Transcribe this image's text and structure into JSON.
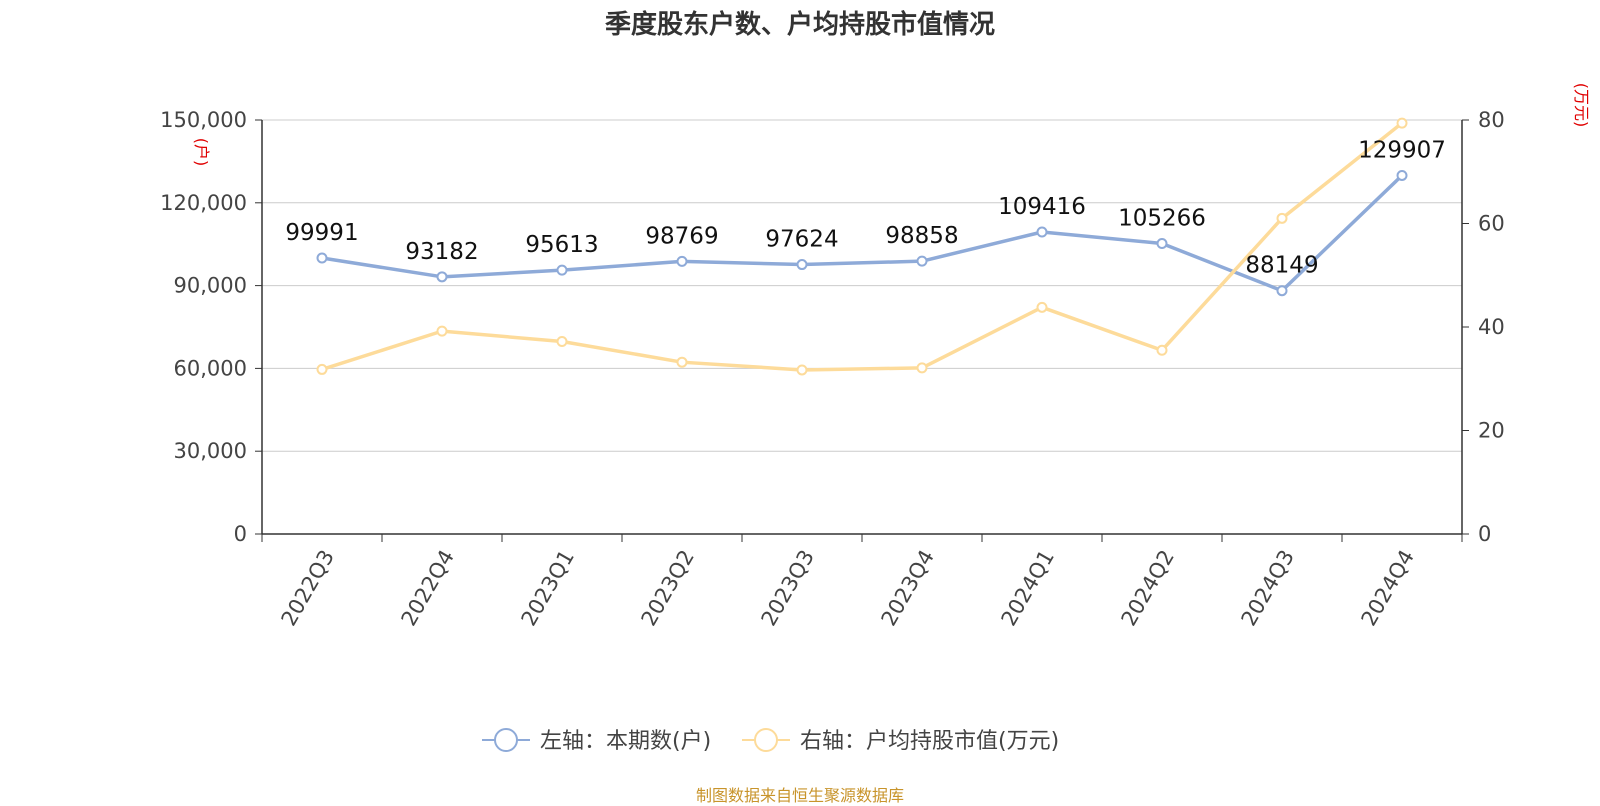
{
  "title": "季度股东户数、户均持股市值情况",
  "source": "制图数据来自恒生聚源数据库",
  "chart_data": {
    "type": "line",
    "categories": [
      "2022Q3",
      "2022Q4",
      "2023Q1",
      "2023Q2",
      "2023Q3",
      "2023Q4",
      "2024Q1",
      "2024Q2",
      "2024Q3",
      "2024Q4"
    ],
    "left_axis": {
      "unit": "(户)",
      "ylim": [
        0,
        150000
      ],
      "ticks": [
        "0",
        "30,000",
        "60,000",
        "90,000",
        "120,000",
        "150,000"
      ],
      "tick_values": [
        0,
        30000,
        60000,
        90000,
        120000,
        150000
      ]
    },
    "right_axis": {
      "unit": "(万元)",
      "ylim": [
        0,
        80
      ],
      "ticks": [
        "0",
        "20",
        "40",
        "60",
        "80"
      ],
      "tick_values": [
        0,
        20,
        40,
        60,
        80
      ]
    },
    "grid": true,
    "legend_position": "bottom",
    "series": [
      {
        "name": "左轴：本期数(户)",
        "axis": "left",
        "color": "#8eaad8",
        "values": [
          99991,
          93182,
          95613,
          98769,
          97624,
          98858,
          109416,
          105266,
          88149,
          129907
        ],
        "labels": [
          "99991",
          "93182",
          "95613",
          "98769",
          "97624",
          "98858",
          "109416",
          "105266",
          "88149",
          "129907"
        ]
      },
      {
        "name": "右轴：户均持股市值(万元)",
        "axis": "right",
        "color": "#fddb9a",
        "values": [
          31.8,
          39.2,
          37.2,
          33.2,
          31.7,
          32.1,
          43.8,
          35.5,
          61.0,
          79.4
        ]
      }
    ]
  }
}
